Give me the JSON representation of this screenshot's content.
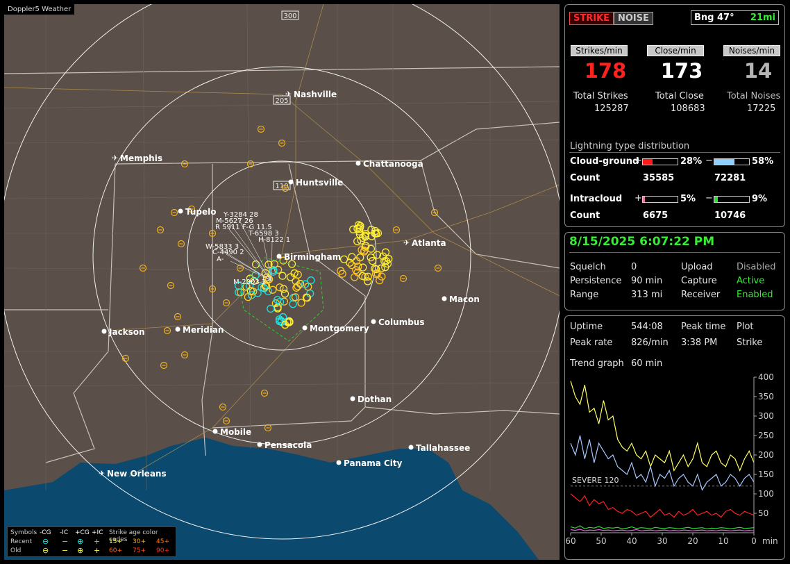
{
  "map": {
    "app_tag": "Doppler5 Weather",
    "range_labels": [
      "300",
      "205",
      "110"
    ],
    "cities": [
      {
        "name": "Nashville",
        "icon": "airport"
      },
      {
        "name": "Memphis",
        "icon": "airport"
      },
      {
        "name": "Chattanooga",
        "icon": "dot"
      },
      {
        "name": "Huntsville",
        "icon": "dot"
      },
      {
        "name": "Tupelo",
        "icon": "dot"
      },
      {
        "name": "Atlanta",
        "icon": "airport"
      },
      {
        "name": "Birmingham",
        "icon": "dot"
      },
      {
        "name": "Macon",
        "icon": "dot"
      },
      {
        "name": "Jackson",
        "icon": "dot"
      },
      {
        "name": "Meridian",
        "icon": "dot"
      },
      {
        "name": "Montgomery",
        "icon": "dot"
      },
      {
        "name": "Columbus",
        "icon": "dot"
      },
      {
        "name": "Dothan",
        "icon": "dot"
      },
      {
        "name": "Mobile",
        "icon": "dot"
      },
      {
        "name": "Pensacola",
        "icon": "dot"
      },
      {
        "name": "Tallahassee",
        "icon": "dot"
      },
      {
        "name": "Panama City",
        "icon": "dot"
      },
      {
        "name": "New Orleans",
        "icon": "airport"
      }
    ],
    "storm_labels": [
      "Y-3284 28",
      "M-5627 26",
      "R 5911 F-G 11.5",
      "T-6598 3",
      "H-8122 1",
      "W-5833 3",
      "C-4490 2",
      "A-",
      "M-2003 2"
    ],
    "legend": {
      "symbols_label": "Symbols",
      "headers": [
        "-CG",
        "-IC",
        "+CG",
        "+IC"
      ],
      "age_title": "Strike age color codes",
      "rows": [
        {
          "label": "Recent",
          "ages": [
            "15+",
            "30+",
            "45+"
          ]
        },
        {
          "label": "Old",
          "ages": [
            "60+",
            "75+",
            "90+"
          ]
        }
      ]
    }
  },
  "top": {
    "strike_button": "STRIKE",
    "noise_button": "NOISE",
    "bearing": "Bng 47°",
    "distance": "21mi"
  },
  "rates": [
    {
      "label": "Strikes/min",
      "value": "178",
      "color": "#ff2020",
      "total_label": "Total Strikes",
      "total": "125287"
    },
    {
      "label": "Close/min",
      "value": "173",
      "color": "#ffffff",
      "total_label": "Total Close",
      "total": "108683"
    },
    {
      "label": "Noises/min",
      "value": "14",
      "color": "#b4b4b4",
      "total_label": "Total Noises",
      "total": "17225"
    }
  ],
  "distribution": {
    "title": "Lightning type distribution",
    "cloud_ground": {
      "label": "Cloud-ground",
      "plus_pct": "28%",
      "minus_pct": "58%",
      "plus_count": "35585",
      "minus_count": "72281",
      "plus_frac": 0.28,
      "minus_frac": 0.58
    },
    "intracloud": {
      "label": "Intracloud",
      "plus_pct": "5%",
      "minus_pct": "9%",
      "plus_count": "6675",
      "minus_count": "10746",
      "plus_frac": 0.05,
      "minus_frac": 0.09
    },
    "count_label": "Count",
    "plus_sign": "+",
    "minus_sign": "−",
    "colors": {
      "cg_plus": "#ff1a1a",
      "cg_minus": "#8fcfff",
      "ic_plus": "#ff66aa",
      "ic_minus": "#33dd33"
    }
  },
  "status": {
    "datetime": "8/15/2025 6:07:22 PM",
    "squelch_label": "Squelch",
    "squelch": "0",
    "persistence_label": "Persistence",
    "persistence": "90 min",
    "range_label": "Range",
    "range": "313 mi",
    "upload_label": "Upload",
    "upload": "Disabled",
    "capture_label": "Capture",
    "capture": "Active",
    "receiver_label": "Receiver",
    "receiver": "Enabled"
  },
  "stats": {
    "uptime_label": "Uptime",
    "uptime": "544:08",
    "peak_time_label": "Peak time",
    "peak_time": "3:38 PM",
    "plot_label": "Plot",
    "plot": "Strike",
    "peak_rate_label": "Peak rate",
    "peak_rate": "826/min",
    "trend_label": "Trend graph",
    "trend_span": "60 min"
  },
  "chart_data": {
    "type": "line",
    "x_label": "min",
    "x_ticks": [
      "60",
      "50",
      "40",
      "30",
      "20",
      "10",
      "0"
    ],
    "xlim": [
      60,
      0
    ],
    "ylim": [
      0,
      400
    ],
    "y_ticks": [
      "400",
      "350",
      "300",
      "250",
      "200",
      "150",
      "100",
      "50"
    ],
    "threshold": {
      "label": "SEVERE 120",
      "value": 120
    },
    "series": [
      {
        "color": "#ffff66",
        "values": [
          390,
          350,
          330,
          380,
          310,
          320,
          280,
          340,
          290,
          300,
          240,
          220,
          210,
          230,
          200,
          190,
          210,
          170,
          200,
          190,
          180,
          210,
          160,
          180,
          200,
          170,
          190,
          230,
          180,
          170,
          200,
          210,
          180,
          170,
          200,
          190,
          160,
          190,
          210,
          180
        ]
      },
      {
        "color": "#a8c8ff",
        "values": [
          230,
          200,
          250,
          190,
          240,
          180,
          230,
          210,
          190,
          200,
          170,
          160,
          150,
          180,
          140,
          150,
          130,
          170,
          120,
          150,
          140,
          160,
          120,
          140,
          150,
          130,
          120,
          150,
          110,
          130,
          140,
          150,
          120,
          130,
          150,
          140,
          120,
          140,
          150,
          130
        ]
      },
      {
        "color": "#ff2020",
        "values": [
          100,
          90,
          80,
          95,
          70,
          85,
          75,
          80,
          60,
          65,
          55,
          50,
          60,
          55,
          45,
          50,
          55,
          40,
          50,
          60,
          45,
          50,
          40,
          55,
          45,
          50,
          60,
          45,
          50,
          55,
          45,
          50,
          40,
          55,
          60,
          50,
          45,
          55,
          50,
          45
        ]
      },
      {
        "color": "#33dd33",
        "values": [
          15,
          12,
          18,
          10,
          14,
          12,
          16,
          11,
          13,
          12,
          14,
          10,
          12,
          15,
          11,
          13,
          12,
          10,
          14,
          12,
          11,
          13,
          12,
          10,
          12,
          14,
          11,
          12,
          13,
          10,
          12,
          11,
          13,
          12,
          10,
          12,
          14,
          11,
          12,
          13
        ]
      },
      {
        "color": "#e060e0",
        "values": [
          8,
          6,
          9,
          5,
          7,
          6,
          8,
          6,
          7,
          5,
          6,
          7,
          5,
          6,
          8,
          5,
          6,
          7,
          5,
          6,
          7,
          5,
          6,
          5,
          7,
          6,
          5,
          6,
          7,
          5,
          6,
          5,
          7,
          6,
          5,
          6,
          7,
          5,
          6,
          5
        ]
      }
    ]
  }
}
